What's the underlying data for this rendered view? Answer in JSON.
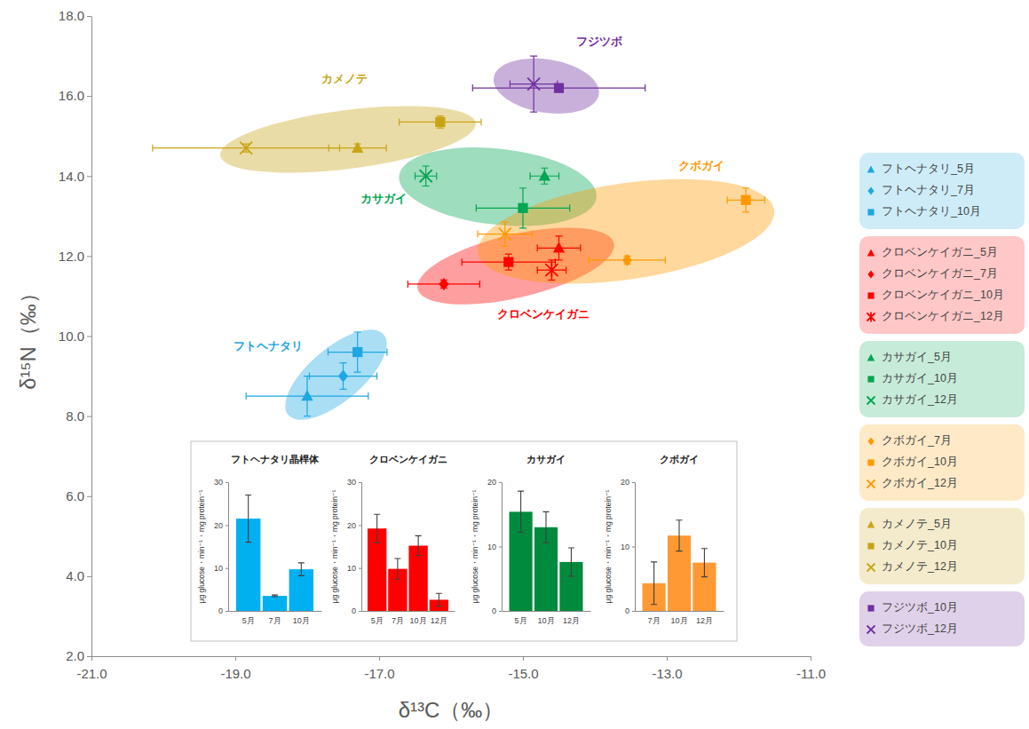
{
  "chart_data": [
    {
      "type": "scatter",
      "x_label": "δ¹³C（‰）",
      "y_label": "δ¹⁵N（‰）",
      "xlim": [
        -21,
        -11
      ],
      "xticks": [
        {
          "value": -21,
          "label": "-21.0"
        },
        {
          "value": -19,
          "label": "-19.0"
        },
        {
          "value": -17,
          "label": "-17.0"
        },
        {
          "value": -15,
          "label": "-15.0"
        },
        {
          "value": -13,
          "label": "-13.0"
        },
        {
          "value": -11,
          "label": "-11.0"
        }
      ],
      "ylim": [
        2,
        18
      ],
      "yticks": [
        {
          "value": 2,
          "label": "2.0"
        },
        {
          "value": 4,
          "label": "4.0"
        },
        {
          "value": 6,
          "label": "6.0"
        },
        {
          "value": 8,
          "label": "8.0"
        },
        {
          "value": 10,
          "label": "10.0"
        },
        {
          "value": 12,
          "label": "12.0"
        },
        {
          "value": 14,
          "label": "14.0"
        },
        {
          "value": 16,
          "label": "16.0"
        },
        {
          "value": 18,
          "label": "18.0"
        }
      ],
      "grid": false,
      "legend": "right",
      "series": [
        {
          "name": "フトヘナタリ",
          "color": "#1ea7e1",
          "x": [
            -18.0,
            -17.5,
            -17.3
          ],
          "values": [
            8.5,
            9.0,
            9.6
          ],
          "x_error": [
            0.85,
            0.47,
            0.41
          ],
          "y_error": [
            0.5,
            0.33,
            0.5
          ],
          "markers": [
            "triangle",
            "diamond",
            "square"
          ],
          "legend_labels": [
            "フトヘナタリ_5月",
            "フトヘナタリ_7月",
            "フトヘナタリ_10月"
          ]
        },
        {
          "name": "クロベンケイガニ",
          "color": "#ff0000",
          "x": [
            -14.5,
            -16.1,
            -15.2,
            -14.6
          ],
          "values": [
            12.2,
            11.3,
            11.85,
            11.65
          ],
          "x_error": [
            0.3,
            0.5,
            0.65,
            0.2
          ],
          "y_error": [
            0.3,
            0.1,
            0.2,
            0.25
          ],
          "markers": [
            "triangle",
            "diamond",
            "square",
            "asterisk"
          ],
          "legend_labels": [
            "クロベンケイガニ_5月",
            "クロベンケイガニ_7月",
            "クロベンケイガニ_10月",
            "クロベンケイガニ_12月"
          ]
        },
        {
          "name": "カサガイ",
          "color": "#00a651",
          "x": [
            -14.7,
            -15.0,
            -16.35
          ],
          "values": [
            14.0,
            13.2,
            14.0
          ],
          "x_error": [
            0.2,
            0.65,
            0.15
          ],
          "y_error": [
            0.2,
            0.5,
            0.25
          ],
          "markers": [
            "triangle",
            "square",
            "x"
          ],
          "legend_labels": [
            "カサガイ_5月",
            "カサガイ_10月",
            "カサガイ_12月"
          ]
        },
        {
          "name": "クボガイ",
          "color": "#ff9900",
          "x": [
            -13.55,
            -11.9,
            -15.25
          ],
          "values": [
            11.9,
            13.4,
            12.55
          ],
          "x_error": [
            0.53,
            0.26,
            0.38
          ],
          "y_error": [
            0.1,
            0.3,
            0.3
          ],
          "markers": [
            "diamond",
            "square",
            "x"
          ],
          "legend_labels": [
            "クボガイ_7月",
            "クボガイ_10月",
            "クボガイ_12月"
          ]
        },
        {
          "name": "カメノテ",
          "color": "#c8a415",
          "x": [
            -17.3,
            -16.15,
            -18.85
          ],
          "values": [
            14.7,
            15.35,
            14.7
          ],
          "x_error": [
            0.4,
            0.57,
            1.3
          ],
          "y_error": [
            0.1,
            0.15,
            0.1
          ],
          "markers": [
            "triangle",
            "square",
            "x"
          ],
          "legend_labels": [
            "カメノテ_5月",
            "カメノテ_10月",
            "カメノテ_12月"
          ]
        },
        {
          "name": "フジツボ",
          "color": "#7030a0",
          "x": [
            -14.5,
            -14.85
          ],
          "values": [
            16.2,
            16.3
          ],
          "x_error": [
            1.2,
            0.33
          ],
          "y_error": [
            0.1,
            0.7
          ],
          "markers": [
            "square",
            "x"
          ],
          "legend_labels": [
            "フジツボ_10月",
            "フジツボ_12月"
          ]
        }
      ]
    },
    {
      "type": "bar",
      "title": "フトヘナタリ晶桿体",
      "color": "#00b0f0",
      "y_label": "μg glucose・min⁻¹・mg protein⁻¹",
      "categories": [
        "5月",
        "7月",
        "10月"
      ],
      "values": [
        21.5,
        3.5,
        9.7
      ],
      "error": [
        5.5,
        0.2,
        1.5
      ],
      "ylim": [
        0,
        30
      ],
      "yticks": [
        0,
        10,
        20,
        30
      ]
    },
    {
      "type": "bar",
      "title": "クロベンケイガニ",
      "color": "#ff0000",
      "y_label": "μg glucose・min⁻¹・mg protein⁻¹",
      "categories": [
        "5月",
        "7月",
        "10月",
        "12月"
      ],
      "values": [
        19.2,
        9.8,
        15.2,
        2.6
      ],
      "error": [
        3.3,
        2.4,
        2.3,
        1.5
      ],
      "ylim": [
        0,
        30
      ],
      "yticks": [
        0,
        10,
        20,
        30
      ]
    },
    {
      "type": "bar",
      "title": "カサガイ",
      "color": "#008a3e",
      "y_label": "μg glucose・min⁻¹・mg protein⁻¹",
      "categories": [
        "5月",
        "10月",
        "12月"
      ],
      "values": [
        15.4,
        13.0,
        7.6
      ],
      "error": [
        3.2,
        2.4,
        2.2
      ],
      "ylim": [
        0,
        20
      ],
      "yticks": [
        0,
        10,
        20
      ]
    },
    {
      "type": "bar",
      "title": "クボガイ",
      "color": "#ff9933",
      "y_label": "μg glucose・min⁻¹・mg protein⁻¹",
      "categories": [
        "7月",
        "10月",
        "12月"
      ],
      "values": [
        4.3,
        11.7,
        7.5
      ],
      "error": [
        3.3,
        2.4,
        2.2
      ],
      "ylim": [
        0,
        20
      ],
      "yticks": [
        0,
        10,
        20
      ]
    }
  ]
}
